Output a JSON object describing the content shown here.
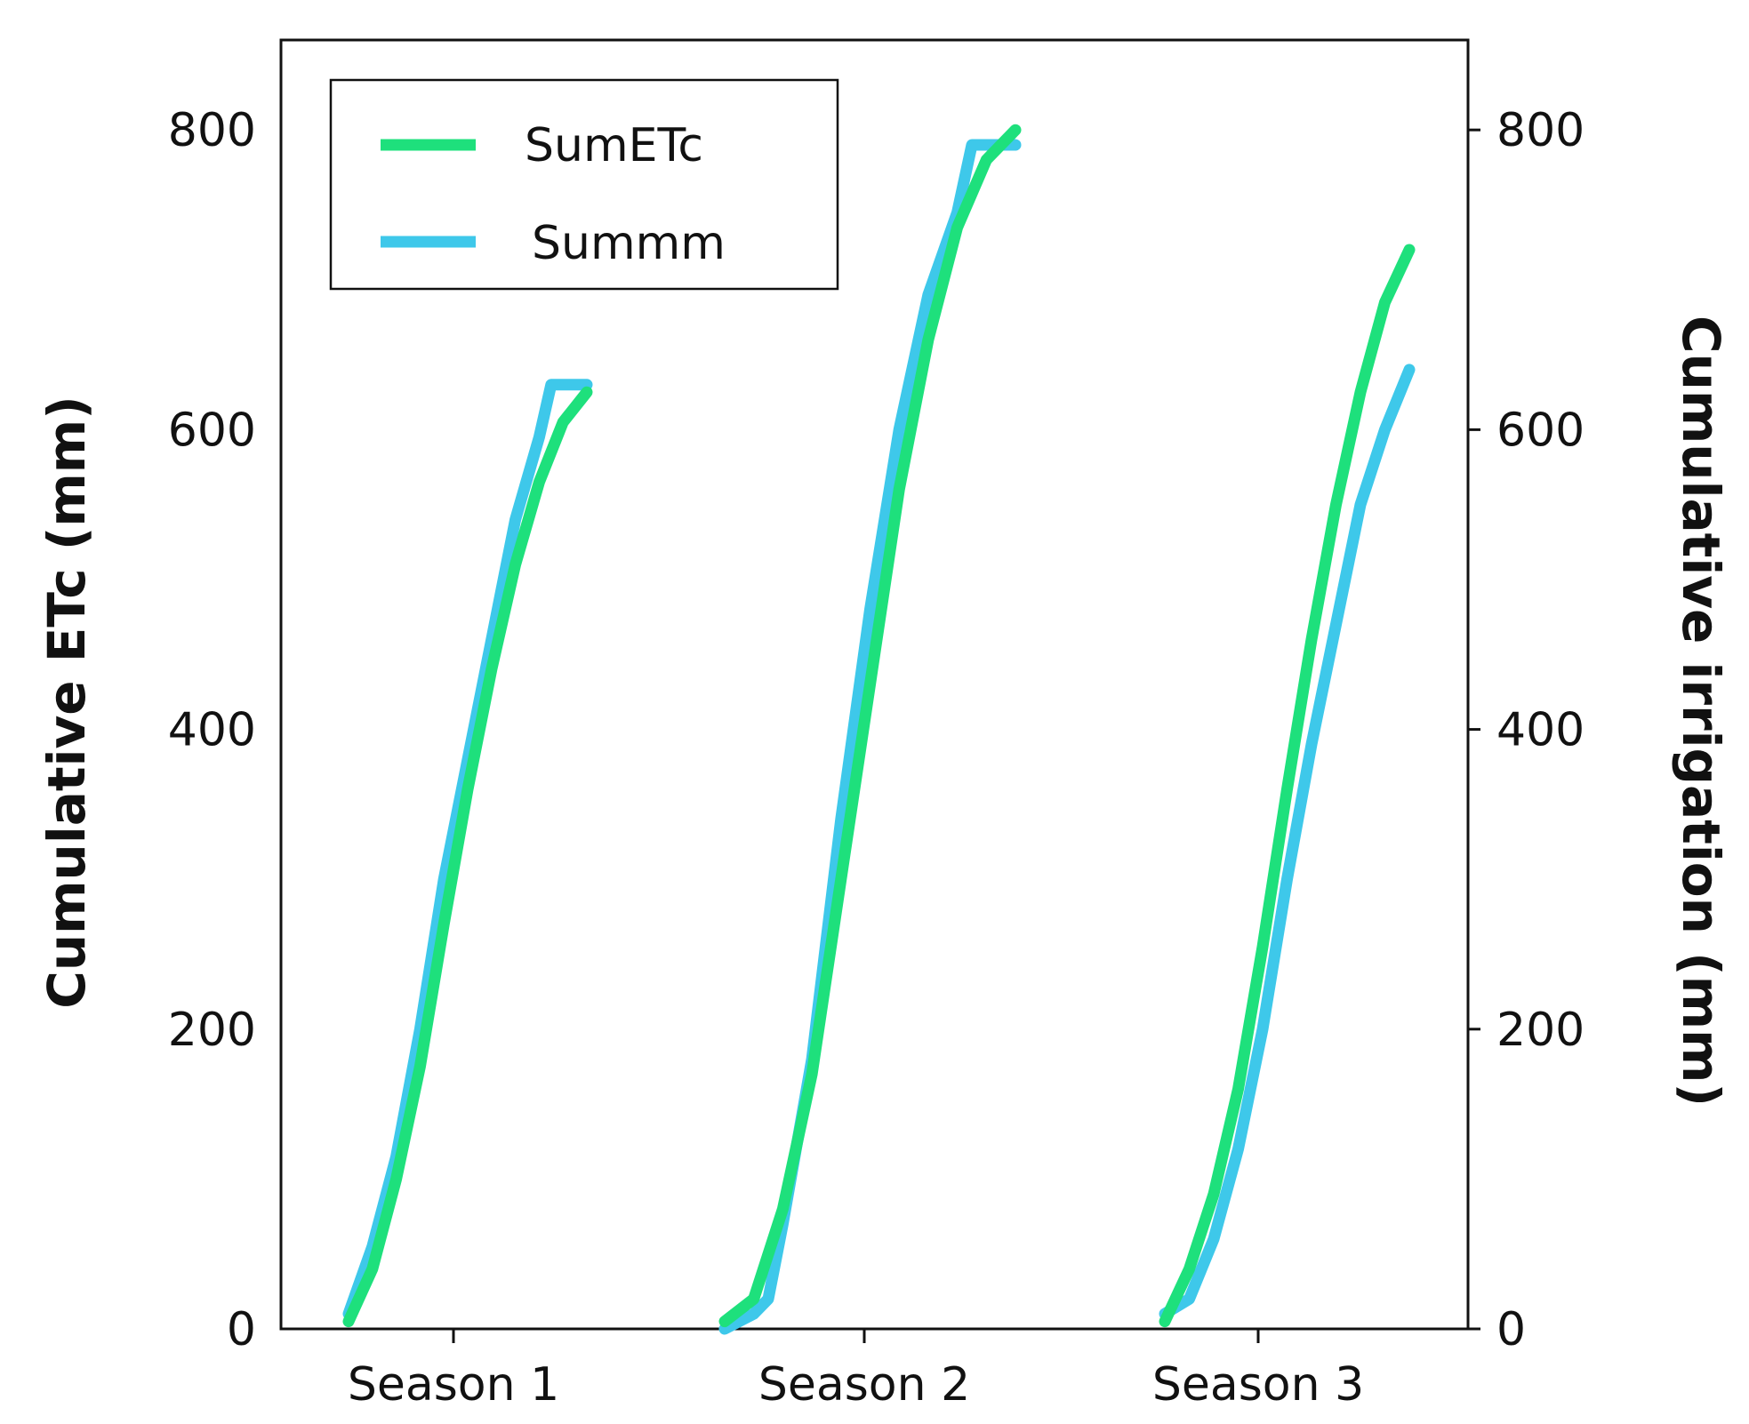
{
  "chart_data": {
    "type": "line",
    "title": "",
    "xlabel": "",
    "ylabel_left": "Cumulative ETc (mm)",
    "ylabel_right": "Cumulative irrigation (mm)",
    "categories": [
      "Season 1",
      "Season 2",
      "Season 3"
    ],
    "ylim_left": [
      0,
      860
    ],
    "ylim_right": [
      0,
      860
    ],
    "yticks_left": [
      "0",
      "200",
      "400",
      "600",
      "800"
    ],
    "yticks_right": [
      "0",
      "200",
      "400",
      "600",
      "800"
    ],
    "grid": false,
    "legend_position": "top-left",
    "series": [
      {
        "name": "SumETc",
        "color": "#1ee07c",
        "seasons": [
          [
            {
              "p": 0.0,
              "y": 5
            },
            {
              "p": 0.1,
              "y": 40
            },
            {
              "p": 0.2,
              "y": 100
            },
            {
              "p": 0.3,
              "y": 175
            },
            {
              "p": 0.4,
              "y": 270
            },
            {
              "p": 0.5,
              "y": 360
            },
            {
              "p": 0.6,
              "y": 440
            },
            {
              "p": 0.7,
              "y": 510
            },
            {
              "p": 0.8,
              "y": 565
            },
            {
              "p": 0.9,
              "y": 605
            },
            {
              "p": 1.0,
              "y": 625
            }
          ],
          [
            {
              "p": 0.0,
              "y": 5
            },
            {
              "p": 0.1,
              "y": 20
            },
            {
              "p": 0.2,
              "y": 80
            },
            {
              "p": 0.3,
              "y": 170
            },
            {
              "p": 0.4,
              "y": 300
            },
            {
              "p": 0.5,
              "y": 430
            },
            {
              "p": 0.6,
              "y": 560
            },
            {
              "p": 0.7,
              "y": 660
            },
            {
              "p": 0.8,
              "y": 735
            },
            {
              "p": 0.9,
              "y": 780
            },
            {
              "p": 1.0,
              "y": 800
            }
          ],
          [
            {
              "p": 0.0,
              "y": 5
            },
            {
              "p": 0.1,
              "y": 40
            },
            {
              "p": 0.2,
              "y": 90
            },
            {
              "p": 0.3,
              "y": 160
            },
            {
              "p": 0.4,
              "y": 255
            },
            {
              "p": 0.5,
              "y": 360
            },
            {
              "p": 0.6,
              "y": 460
            },
            {
              "p": 0.7,
              "y": 550
            },
            {
              "p": 0.8,
              "y": 625
            },
            {
              "p": 0.9,
              "y": 685
            },
            {
              "p": 1.0,
              "y": 720
            }
          ]
        ]
      },
      {
        "name": "Summm",
        "color": "#3ec8ea",
        "seasons": [
          [
            {
              "p": 0.0,
              "y": 10
            },
            {
              "p": 0.1,
              "y": 55
            },
            {
              "p": 0.2,
              "y": 115
            },
            {
              "p": 0.3,
              "y": 200
            },
            {
              "p": 0.35,
              "y": 250
            },
            {
              "p": 0.4,
              "y": 300
            },
            {
              "p": 0.5,
              "y": 380
            },
            {
              "p": 0.6,
              "y": 460
            },
            {
              "p": 0.7,
              "y": 540
            },
            {
              "p": 0.8,
              "y": 595
            },
            {
              "p": 0.85,
              "y": 630
            },
            {
              "p": 1.0,
              "y": 630
            }
          ],
          [
            {
              "p": 0.0,
              "y": 0
            },
            {
              "p": 0.1,
              "y": 10
            },
            {
              "p": 0.15,
              "y": 20
            },
            {
              "p": 0.2,
              "y": 70
            },
            {
              "p": 0.3,
              "y": 180
            },
            {
              "p": 0.4,
              "y": 340
            },
            {
              "p": 0.5,
              "y": 480
            },
            {
              "p": 0.6,
              "y": 600
            },
            {
              "p": 0.7,
              "y": 690
            },
            {
              "p": 0.8,
              "y": 745
            },
            {
              "p": 0.85,
              "y": 790
            },
            {
              "p": 1.0,
              "y": 790
            }
          ],
          [
            {
              "p": 0.0,
              "y": 10
            },
            {
              "p": 0.1,
              "y": 20
            },
            {
              "p": 0.2,
              "y": 60
            },
            {
              "p": 0.3,
              "y": 120
            },
            {
              "p": 0.4,
              "y": 200
            },
            {
              "p": 0.5,
              "y": 300
            },
            {
              "p": 0.6,
              "y": 390
            },
            {
              "p": 0.7,
              "y": 470
            },
            {
              "p": 0.8,
              "y": 550
            },
            {
              "p": 0.9,
              "y": 600
            },
            {
              "p": 1.0,
              "y": 640
            }
          ]
        ]
      }
    ]
  }
}
